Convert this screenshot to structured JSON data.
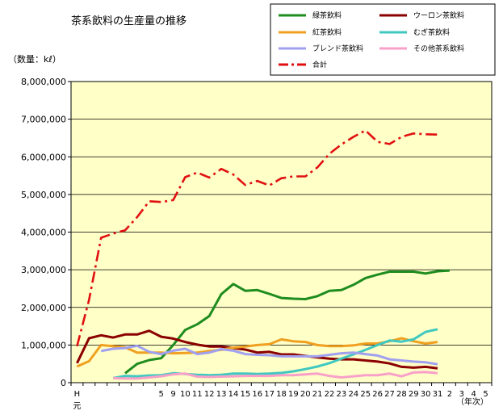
{
  "chart_data": {
    "type": "line",
    "title": "茶系飲料の生産量の推移",
    "ylabel": "（数量：kℓ）",
    "xlabel": "（年次）",
    "ylim": [
      0,
      8000000
    ],
    "y_ticks": [
      "0",
      "1,000,000",
      "2,000,000",
      "3,000,000",
      "4,000,000",
      "5,000,000",
      "6,000,000",
      "7,000,000",
      "8,000,000"
    ],
    "grid": "horizontal",
    "legend_position": "top-right",
    "categories": [
      "H元",
      "2",
      "3",
      "4",
      "5",
      "6",
      "7",
      "8",
      "9",
      "10",
      "11",
      "12",
      "13",
      "14",
      "15",
      "16",
      "17",
      "18",
      "19",
      "20",
      "21",
      "22",
      "23",
      "24",
      "25",
      "26",
      "27",
      "28",
      "29",
      "30",
      "31",
      "2",
      "3",
      "4",
      "5"
    ],
    "x_tick_labels": [
      "H",
      "元",
      "5",
      "9",
      "10",
      "11",
      "12",
      "13",
      "14",
      "15",
      "16",
      "17",
      "18",
      "19",
      "20",
      "21",
      "22",
      "23",
      "24",
      "25",
      "26",
      "27",
      "28",
      "29",
      "30",
      "31",
      "2",
      "3",
      "4",
      "5"
    ],
    "series": [
      {
        "name": "緑茶飲料",
        "color": "#1e8c1e",
        "dash": "solid",
        "values": [
          null,
          null,
          null,
          null,
          250000,
          500000,
          600000,
          650000,
          1000000,
          1400000,
          1550000,
          1770000,
          2350000,
          2620000,
          2440000,
          2460000,
          2360000,
          2250000,
          2230000,
          2220000,
          2300000,
          2440000,
          2460000,
          2600000,
          2780000,
          2870000,
          2950000,
          2950000,
          2950000,
          2900000,
          2960000,
          2980000,
          null,
          null,
          null
        ]
      },
      {
        "name": "ウーロン茶飲料",
        "color": "#8b0000",
        "dash": "solid",
        "values": [
          520000,
          1180000,
          1260000,
          1200000,
          1280000,
          1280000,
          1380000,
          1220000,
          1170000,
          1080000,
          1010000,
          960000,
          960000,
          920000,
          880000,
          800000,
          820000,
          750000,
          750000,
          710000,
          670000,
          640000,
          620000,
          620000,
          590000,
          560000,
          510000,
          420000,
          400000,
          420000,
          380000,
          null,
          null,
          null,
          null
        ]
      },
      {
        "name": "紅茶飲料",
        "color": "#f0a020",
        "dash": "solid",
        "values": [
          430000,
          570000,
          1000000,
          970000,
          940000,
          800000,
          800000,
          800000,
          780000,
          790000,
          800000,
          840000,
          870000,
          930000,
          960000,
          1000000,
          1020000,
          1150000,
          1100000,
          1080000,
          1000000,
          970000,
          970000,
          990000,
          1040000,
          1040000,
          1100000,
          1180000,
          1100000,
          1040000,
          1080000,
          null,
          null,
          null,
          null
        ]
      },
      {
        "name": "むぎ茶飲料",
        "color": "#40c8c0",
        "dash": "solid",
        "values": [
          null,
          null,
          null,
          120000,
          180000,
          170000,
          190000,
          200000,
          250000,
          230000,
          210000,
          200000,
          210000,
          240000,
          240000,
          230000,
          240000,
          260000,
          300000,
          360000,
          430000,
          520000,
          640000,
          750000,
          870000,
          1000000,
          1120000,
          1090000,
          1150000,
          1350000,
          1420000,
          null,
          null,
          null,
          null
        ]
      },
      {
        "name": "ブレンド茶飲料",
        "color": "#a0a0f0",
        "dash": "solid",
        "values": [
          null,
          null,
          840000,
          900000,
          920000,
          980000,
          820000,
          760000,
          850000,
          900000,
          760000,
          800000,
          890000,
          850000,
          760000,
          740000,
          730000,
          700000,
          700000,
          700000,
          700000,
          740000,
          780000,
          800000,
          760000,
          720000,
          620000,
          590000,
          560000,
          540000,
          490000,
          null,
          null,
          null,
          null
        ]
      },
      {
        "name": "その他茶系飲料",
        "color": "#f8a0c8",
        "dash": "solid",
        "values": [
          null,
          null,
          null,
          120000,
          110000,
          110000,
          140000,
          170000,
          220000,
          240000,
          160000,
          150000,
          160000,
          170000,
          180000,
          180000,
          180000,
          200000,
          200000,
          220000,
          240000,
          180000,
          140000,
          170000,
          200000,
          200000,
          240000,
          170000,
          270000,
          280000,
          250000,
          null,
          null,
          null,
          null
        ]
      },
      {
        "name": "合計",
        "color": "#e01010",
        "dash": "dashdot",
        "values": [
          970000,
          2200000,
          3850000,
          3960000,
          4050000,
          4400000,
          4820000,
          4800000,
          4850000,
          5460000,
          5580000,
          5450000,
          5680000,
          5530000,
          5250000,
          5360000,
          5240000,
          5430000,
          5480000,
          5480000,
          5720000,
          6080000,
          6330000,
          6530000,
          6700000,
          6400000,
          6340000,
          6530000,
          6620000,
          6600000,
          6590000,
          null,
          null,
          null,
          null
        ]
      }
    ]
  }
}
